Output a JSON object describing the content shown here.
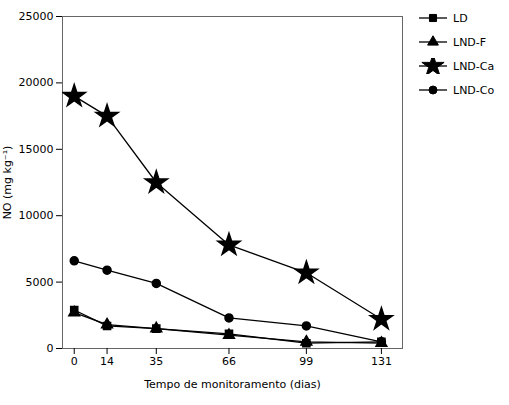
{
  "chart_data": {
    "type": "line",
    "xlabel": "Tempo de monitoramento (dias)",
    "ylabel": "NO (mg kg⁻¹)",
    "x": [
      0,
      14,
      35,
      66,
      99,
      131
    ],
    "series": [
      {
        "name": "LD",
        "color": "#000000",
        "marker": "square",
        "values": [
          2900,
          1700,
          1500,
          1100,
          400,
          500
        ]
      },
      {
        "name": "LND-F",
        "color": "#000000",
        "marker": "triangle",
        "values": [
          2700,
          1800,
          1500,
          1000,
          500,
          400
        ]
      },
      {
        "name": "LND-Ca",
        "color": "#000000",
        "marker": "star",
        "values": [
          19000,
          17500,
          12500,
          7800,
          5700,
          2200
        ]
      },
      {
        "name": "LND-Co",
        "color": "#000000",
        "marker": "circle",
        "values": [
          6600,
          5900,
          4900,
          2300,
          1700,
          500
        ]
      }
    ],
    "xlim": [
      -5,
      140
    ],
    "xticks": [
      0,
      14,
      35,
      66,
      99,
      131
    ],
    "ylim": [
      0,
      25000
    ],
    "yticks": [
      0,
      5000,
      10000,
      15000,
      20000,
      25000
    ],
    "grid": false,
    "legend": "right"
  }
}
